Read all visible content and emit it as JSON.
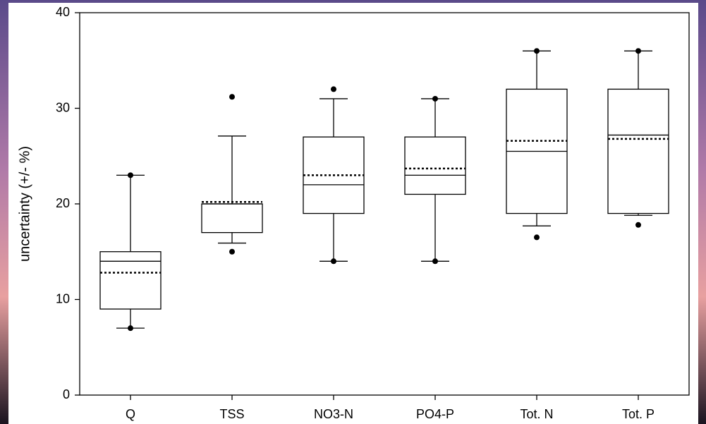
{
  "chart_data": {
    "type": "box",
    "y_label": "uncertainty (+/- %)",
    "categories": [
      "Q",
      "TSS",
      "NO3-N",
      "PO4-P",
      "Tot. N",
      "Tot. P"
    ],
    "whisker_high": [
      23,
      27.1,
      31,
      31,
      36,
      36
    ],
    "q3": [
      15,
      20,
      27,
      27,
      32,
      32
    ],
    "median": [
      14,
      20,
      22,
      23,
      25.5,
      27.2
    ],
    "mean": [
      12.8,
      20.2,
      23,
      23.7,
      26.6,
      26.8
    ],
    "q1": [
      9,
      17,
      19,
      21,
      19,
      19
    ],
    "whisker_low": [
      7,
      15.9,
      14,
      14,
      17.7,
      18.8
    ],
    "outliers": [
      [
        23,
        7
      ],
      [
        31.2,
        15
      ],
      [
        32,
        14
      ],
      [
        31,
        14
      ],
      [
        36,
        16.5
      ],
      [
        36,
        17.8
      ]
    ],
    "color": "#000000",
    "ylim": [
      0,
      40
    ],
    "yticks": [
      0,
      10,
      20,
      30,
      40
    ]
  }
}
